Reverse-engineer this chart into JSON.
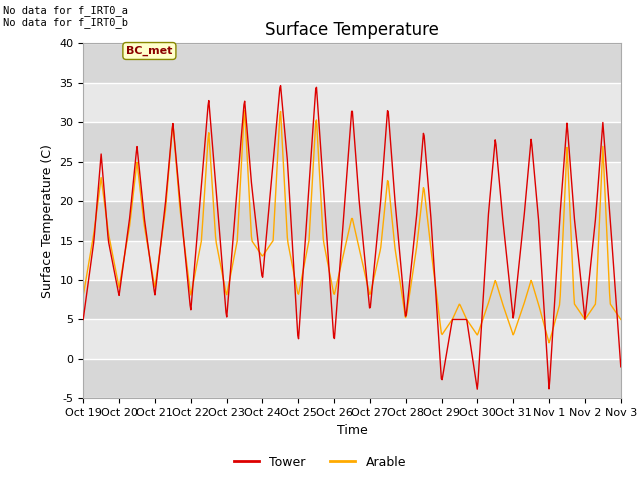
{
  "title": "Surface Temperature",
  "ylabel": "Surface Temperature (C)",
  "xlabel": "Time",
  "ylim": [
    -5,
    40
  ],
  "xlim": [
    0,
    15
  ],
  "x_tick_labels": [
    "Oct 19",
    "Oct 20",
    "Oct 21",
    "Oct 22",
    "Oct 23",
    "Oct 24",
    "Oct 25",
    "Oct 26",
    "Oct 27",
    "Oct 28",
    "Oct 29",
    "Oct 30",
    "Oct 31",
    "Nov 1",
    "Nov 2",
    "Nov 3"
  ],
  "yticks": [
    -5,
    0,
    5,
    10,
    15,
    20,
    25,
    30,
    35,
    40
  ],
  "annotation_text": "No data for f_IRT0_a\nNo data for f_IRT0_b",
  "bc_met_label": "BC_met",
  "tower_color": "#dd0000",
  "arable_color": "#ffaa00",
  "background_color": "#e8e8e8",
  "band_color_dark": "#d8d8d8",
  "title_fontsize": 12,
  "axis_fontsize": 9,
  "tick_fontsize": 8,
  "tower_peaks": {
    "t": [
      0.0,
      0.3,
      0.5,
      0.7,
      1.0,
      1.3,
      1.5,
      1.7,
      2.0,
      2.3,
      2.5,
      2.7,
      3.0,
      3.3,
      3.5,
      3.7,
      4.0,
      4.3,
      4.5,
      4.7,
      5.0,
      5.3,
      5.5,
      5.7,
      6.0,
      6.3,
      6.5,
      6.7,
      7.0,
      7.3,
      7.5,
      7.7,
      8.0,
      8.3,
      8.5,
      8.7,
      9.0,
      9.3,
      9.5,
      9.7,
      10.0,
      10.3,
      10.5,
      10.7,
      11.0,
      11.3,
      11.5,
      11.7,
      12.0,
      12.3,
      12.5,
      12.7,
      13.0,
      13.3,
      13.5,
      13.7,
      14.0,
      14.3,
      14.5,
      14.7,
      15.0
    ],
    "v": [
      5,
      15,
      26,
      15,
      8,
      18,
      27,
      18,
      8,
      20,
      30,
      20,
      6,
      22,
      33,
      22,
      5,
      22,
      33,
      22,
      10,
      25,
      35,
      25,
      2,
      22,
      35,
      22,
      2,
      20,
      32,
      20,
      6,
      20,
      32,
      20,
      5,
      18,
      29,
      18,
      -3,
      5,
      5,
      5,
      -4,
      18,
      28,
      18,
      5,
      18,
      28,
      18,
      -4,
      18,
      30,
      18,
      5,
      18,
      30,
      18,
      -1
    ]
  },
  "arable_peaks": {
    "t": [
      0.0,
      0.3,
      0.5,
      0.7,
      1.0,
      1.3,
      1.5,
      1.7,
      2.0,
      2.3,
      2.5,
      2.7,
      3.0,
      3.3,
      3.5,
      3.7,
      4.0,
      4.3,
      4.5,
      4.7,
      5.0,
      5.3,
      5.5,
      5.7,
      6.0,
      6.3,
      6.5,
      6.7,
      7.0,
      7.3,
      7.5,
      7.7,
      8.0,
      8.3,
      8.5,
      8.7,
      9.0,
      9.3,
      9.5,
      9.7,
      10.0,
      10.3,
      10.5,
      10.7,
      11.0,
      11.3,
      11.5,
      11.7,
      12.0,
      12.3,
      12.5,
      12.7,
      13.0,
      13.3,
      13.5,
      13.7,
      14.0,
      14.3,
      14.5,
      14.7,
      15.0
    ],
    "v": [
      8,
      16,
      23,
      16,
      9,
      17,
      25,
      17,
      9,
      19,
      30,
      19,
      8,
      15,
      29,
      15,
      8,
      15,
      32,
      15,
      13,
      15,
      32,
      15,
      8,
      15,
      31,
      15,
      8,
      14,
      18,
      14,
      8,
      14,
      23,
      14,
      5,
      14,
      22,
      14,
      3,
      5,
      7,
      5,
      3,
      7,
      10,
      7,
      3,
      7,
      10,
      7,
      2,
      7,
      27,
      7,
      5,
      7,
      27,
      7,
      5
    ]
  }
}
